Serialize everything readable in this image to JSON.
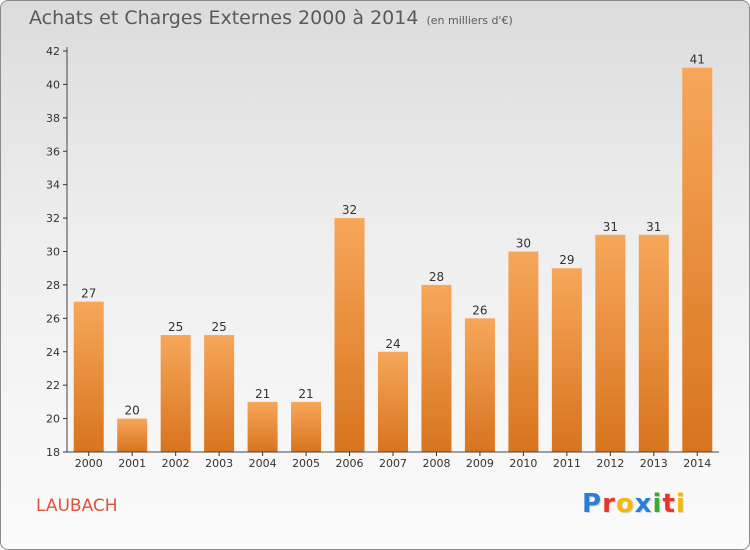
{
  "header": {
    "title": "Achats et Charges Externes 2000 à 2014",
    "subtitle": "(en milliers d'€)"
  },
  "footer": {
    "town": "LAUBACH",
    "brand": "Proxiti",
    "brand_letters": [
      {
        "ch": "P",
        "color": "#2a7fd4"
      },
      {
        "ch": "r",
        "color": "#e8342b"
      },
      {
        "ch": "o",
        "color": "#f5b800"
      },
      {
        "ch": "x",
        "color": "#2a7fd4"
      },
      {
        "ch": "i",
        "color": "#3aa935"
      },
      {
        "ch": "t",
        "color": "#e8342b"
      },
      {
        "ch": "i",
        "color": "#f5b800"
      }
    ]
  },
  "colors": {
    "bar_top": "#f7a75a",
    "bar_bottom": "#d8741e",
    "axis": "#444444",
    "grid_tick": "#333333"
  },
  "chart_data": {
    "type": "bar",
    "title": "Achats et Charges Externes 2000 à 2014",
    "subtitle": "(en milliers d'€)",
    "categories": [
      "2000",
      "2001",
      "2002",
      "2003",
      "2004",
      "2005",
      "2006",
      "2007",
      "2008",
      "2009",
      "2010",
      "2011",
      "2012",
      "2013",
      "2014"
    ],
    "values": [
      27,
      20,
      25,
      25,
      21,
      21,
      32,
      24,
      28,
      26,
      30,
      29,
      31,
      31,
      41
    ],
    "ylim": [
      18,
      42
    ],
    "yticks": [
      18,
      20,
      22,
      24,
      26,
      28,
      30,
      32,
      34,
      36,
      38,
      40,
      42
    ],
    "xlabel": "",
    "ylabel": "",
    "grid": false,
    "data_labels": true
  }
}
